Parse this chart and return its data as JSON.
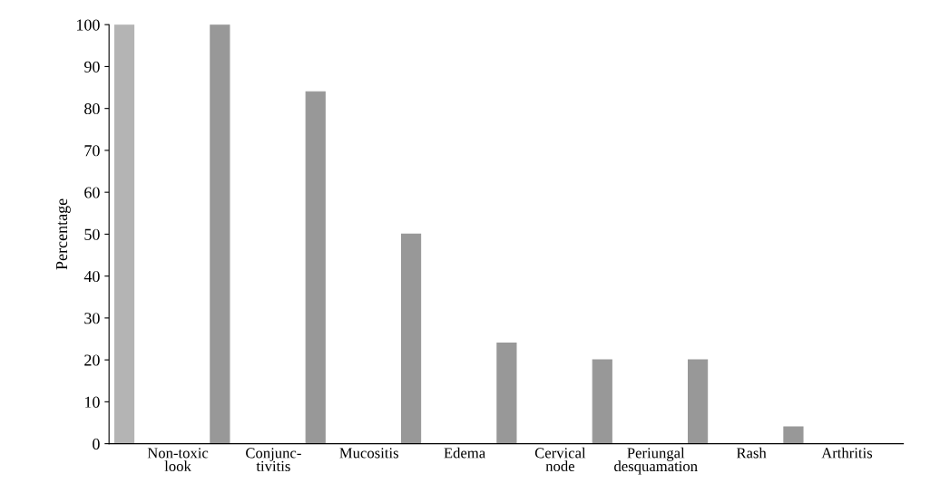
{
  "chart_data": {
    "type": "bar",
    "ylabel": "Percentage",
    "categories": [
      null,
      "Non-toxic\nlook",
      "Conjunc-\ntivitis",
      "Mucositis",
      "Edema",
      "Cervical\nnode",
      "Periungal\ndesquamation",
      "Rash",
      "Arthritis"
    ],
    "values": [
      100,
      100,
      84,
      50,
      24,
      20,
      20,
      4,
      0
    ],
    "colors": [
      "#b4b4b4",
      "#989898",
      "#989898",
      "#989898",
      "#989898",
      "#989898",
      "#989898",
      "#989898",
      "#989898"
    ],
    "ylim": [
      0,
      100
    ],
    "yticks": [
      0,
      10,
      20,
      30,
      40,
      50,
      60,
      70,
      80,
      90,
      100
    ],
    "grid": false,
    "legend": false
  }
}
